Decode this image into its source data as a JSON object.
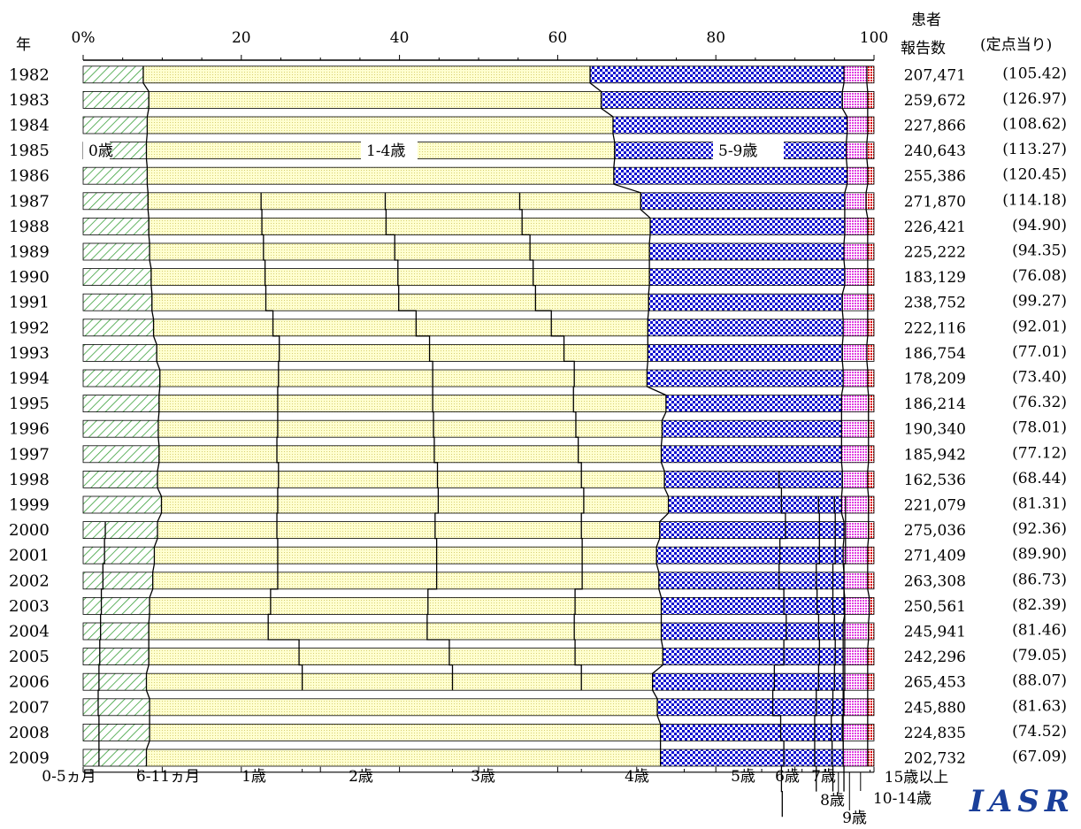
{
  "header": {
    "year_label": "年",
    "patients_label_1": "患者",
    "patients_label_2": "報告数",
    "per_sentinel_label": "(定点当り)"
  },
  "logo_text": "IASR",
  "colors": {
    "age0": "#3aa03a",
    "age1_4": "#ffffc0",
    "age5_9": "#1010d0",
    "age10_14": "#e040e0",
    "age15plus": "#e00000"
  },
  "chart_data": {
    "type": "bar",
    "stacked": true,
    "orientation": "horizontal",
    "xlim": [
      0,
      100
    ],
    "x_ticks": [
      "0%",
      "20",
      "40",
      "60",
      "80",
      "100"
    ],
    "categories": [
      "1982",
      "1983",
      "1984",
      "1985",
      "1986",
      "1987",
      "1988",
      "1989",
      "1990",
      "1991",
      "1992",
      "1993",
      "1994",
      "1995",
      "1996",
      "1997",
      "1998",
      "1999",
      "2000",
      "2001",
      "2002",
      "2003",
      "2004",
      "2005",
      "2006",
      "2007",
      "2008",
      "2009"
    ],
    "series": [
      {
        "name": "0歳",
        "values": [
          7.6,
          8.3,
          8.1,
          8.0,
          8.1,
          8.2,
          8.3,
          8.4,
          8.6,
          8.7,
          8.9,
          9.3,
          9.7,
          9.6,
          9.5,
          9.6,
          9.4,
          9.9,
          9.4,
          9.0,
          8.8,
          8.4,
          8.3,
          8.3,
          8.0,
          8.4,
          8.4,
          8.0
        ]
      },
      {
        "name": "1-4歳",
        "values": [
          56.5,
          57.2,
          58.9,
          59.2,
          59.0,
          62.3,
          63.4,
          63.2,
          63.0,
          62.8,
          62.5,
          62.1,
          61.6,
          64.1,
          63.7,
          63.5,
          64.1,
          64.1,
          63.5,
          63.5,
          64.0,
          64.7,
          64.8,
          65.0,
          64.0,
          64.2,
          64.6,
          65.0
        ]
      },
      {
        "name": "5-9歳",
        "values": [
          32.1,
          30.5,
          29.6,
          29.3,
          29.5,
          25.8,
          24.6,
          24.6,
          24.7,
          24.5,
          24.7,
          24.6,
          24.8,
          22.2,
          22.7,
          22.8,
          22.5,
          21.9,
          23.3,
          23.6,
          23.4,
          23.2,
          23.0,
          22.8,
          24.1,
          23.5,
          23.1,
          23.1
        ]
      },
      {
        "name": "10-14歳",
        "values": [
          2.9,
          3.2,
          2.6,
          2.6,
          2.6,
          2.7,
          2.9,
          3.0,
          2.9,
          3.2,
          3.1,
          3.1,
          3.1,
          3.4,
          3.4,
          3.4,
          3.2,
          3.4,
          3.1,
          3.1,
          3.0,
          3.1,
          3.2,
          3.1,
          3.1,
          3.1,
          3.1,
          3.1
        ]
      },
      {
        "name": "15歳以上",
        "values": [
          0.9,
          0.8,
          0.8,
          0.9,
          0.8,
          1.0,
          0.8,
          0.8,
          0.8,
          0.8,
          0.8,
          0.9,
          0.8,
          0.7,
          0.7,
          0.7,
          0.8,
          0.7,
          0.7,
          0.8,
          0.8,
          0.6,
          0.7,
          0.8,
          0.8,
          0.8,
          0.8,
          0.8
        ]
      }
    ],
    "patient_counts": [
      "207,471",
      "259,672",
      "227,866",
      "240,643",
      "255,386",
      "271,870",
      "226,421",
      "225,222",
      "183,129",
      "238,752",
      "222,116",
      "186,754",
      "178,209",
      "186,214",
      "190,340",
      "185,942",
      "162,536",
      "221,079",
      "275,036",
      "271,409",
      "263,308",
      "250,561",
      "245,941",
      "242,296",
      "265,453",
      "245,880",
      "224,835",
      "202,732"
    ],
    "per_sentinel": [
      "(105.42)",
      "(126.97)",
      "(108.62)",
      "(113.27)",
      "(120.45)",
      "(114.18)",
      "(94.90)",
      "(94.35)",
      "(76.08)",
      "(99.27)",
      "(92.01)",
      "(77.01)",
      "(73.40)",
      "(76.32)",
      "(78.01)",
      "(77.12)",
      "(68.44)",
      "(81.31)",
      "(92.36)",
      "(89.90)",
      "(86.73)",
      "(82.39)",
      "(81.46)",
      "(79.05)",
      "(88.07)",
      "(81.63)",
      "(74.52)",
      "(67.09)"
    ],
    "inline_labels": [
      "0歳",
      "1-4歳",
      "5-9歳"
    ],
    "subdivisions": {
      "age1_4_from": "1987",
      "age5_9_from": "1998",
      "age0_from": "2000",
      "age1": [
        22.5,
        22.6,
        22.8,
        23.0,
        23.1,
        24.0,
        24.8,
        24.7,
        24.6,
        24.6,
        24.5,
        24.7,
        24.6,
        24.5,
        24.6,
        24.6,
        23.7,
        23.4,
        27.3,
        27.7
      ],
      "age2": [
        38.2,
        38.3,
        39.4,
        39.8,
        39.9,
        42.1,
        43.8,
        44.2,
        44.2,
        44.3,
        44.4,
        44.8,
        44.9,
        44.5,
        44.7,
        44.7,
        43.6,
        43.5,
        46.3,
        46.7
      ],
      "age3": [
        55.2,
        55.5,
        56.5,
        56.9,
        57.2,
        59.2,
        60.8,
        62.1,
        62.0,
        62.3,
        62.6,
        63.0,
        63.3,
        63.0,
        63.1,
        63.1,
        62.2,
        62.1,
        62.2,
        63.0
      ],
      "age5": [
        88.0,
        88.3,
        88.8,
        88.1,
        88.0,
        88.6,
        88.9,
        88.6,
        87.4,
        87.2,
        88.2,
        88.6,
        88.3,
        88.4
      ],
      "age6": [
        93.0,
        93.1,
        93.1,
        92.7,
        92.8,
        93.0,
        93.1,
        93.0,
        92.7,
        92.5,
        92.5,
        92.7
      ],
      "age7": [
        95.0,
        95.1,
        95.1,
        94.8,
        94.8,
        95.0,
        95.1,
        95.0,
        94.8,
        94.6,
        94.7,
        94.8
      ],
      "age8": [
        96.4,
        96.4,
        96.4,
        96.2,
        96.2,
        96.3,
        96.3,
        96.3,
        96.2,
        96.0,
        96.1,
        96.2
      ],
      "age_0_5m": [
        2.8,
        2.7,
        2.5,
        2.3,
        2.2,
        2.1,
        2.0,
        1.9,
        2.0,
        2.0
      ]
    },
    "bottom_labels": [
      "0-5ヵ月",
      "6-11ヵ月",
      "1歳",
      "2歳",
      "3歳",
      "4歳",
      "5歳",
      "6歳",
      "7歳",
      "8歳",
      "9歳",
      "10-14歳",
      "15歳以上"
    ]
  }
}
